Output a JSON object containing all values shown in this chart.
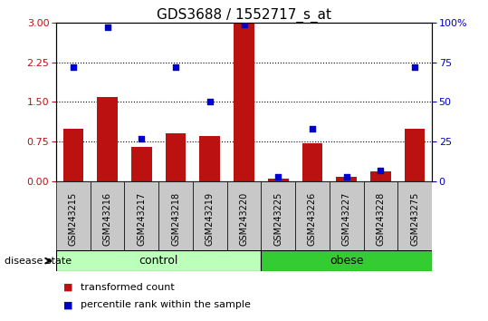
{
  "title": "GDS3688 / 1552717_s_at",
  "samples": [
    "GSM243215",
    "GSM243216",
    "GSM243217",
    "GSM243218",
    "GSM243219",
    "GSM243220",
    "GSM243225",
    "GSM243226",
    "GSM243227",
    "GSM243228",
    "GSM243275"
  ],
  "transformed_count": [
    1.0,
    1.6,
    0.65,
    0.9,
    0.85,
    3.0,
    0.05,
    0.72,
    0.08,
    0.18,
    1.0
  ],
  "percentile_rank": [
    72,
    97,
    27,
    72,
    50,
    99,
    3,
    33,
    3,
    7,
    72
  ],
  "ylim_left": [
    0,
    3
  ],
  "ylim_right": [
    0,
    100
  ],
  "yticks_left": [
    0,
    0.75,
    1.5,
    2.25,
    3
  ],
  "yticks_right": [
    0,
    25,
    50,
    75,
    100
  ],
  "bar_color": "#BB1111",
  "dot_color": "#0000CC",
  "plot_bg": "#FFFFFF",
  "axes_label_bg": "#C8C8C8",
  "control_color_light": "#BBFFBB",
  "control_color_dark": "#44CC44",
  "obese_color": "#33CC33",
  "legend_bar_label": "transformed count",
  "legend_dot_label": "percentile rank within the sample",
  "group_label": "disease state",
  "n_control": 6,
  "n_obese": 5
}
